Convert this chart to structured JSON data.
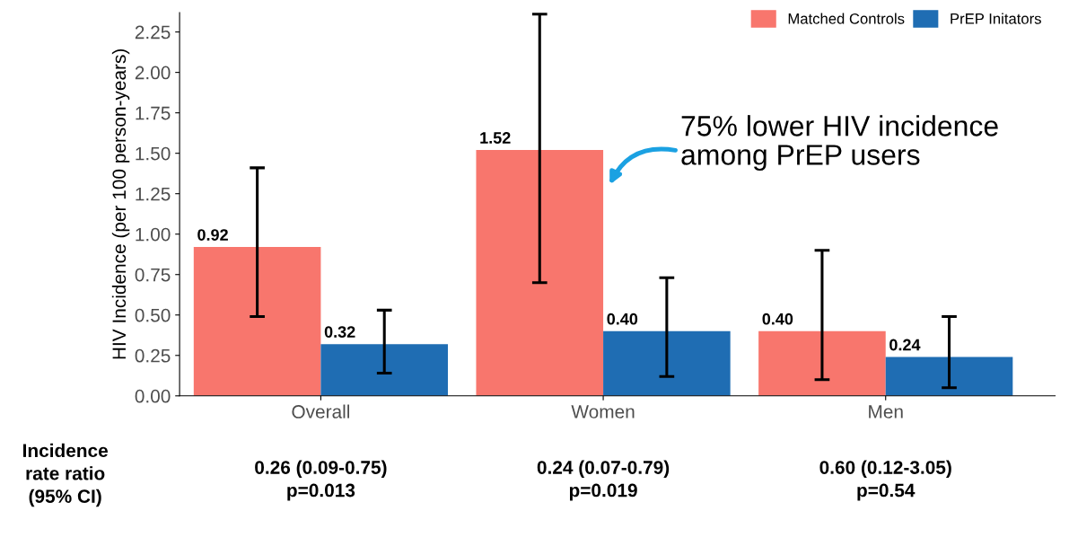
{
  "chart_data": {
    "type": "bar",
    "ylabel": "HIV Incidence (per 100 person-years)",
    "categories": [
      "Overall",
      "Women",
      "Men"
    ],
    "series": [
      {
        "name": "Matched Controls",
        "color": "#f8766d",
        "values": [
          0.92,
          1.52,
          0.4
        ],
        "errors": [
          [
            0.49,
            1.41
          ],
          [
            0.7,
            2.36
          ],
          [
            0.1,
            0.9
          ]
        ],
        "value_labels": [
          "0.92",
          "1.52",
          "0.40"
        ]
      },
      {
        "name": "PrEP Initators",
        "color": "#1f6db3",
        "values": [
          0.32,
          0.4,
          0.24
        ],
        "errors": [
          [
            0.14,
            0.53
          ],
          [
            0.12,
            0.73
          ],
          [
            0.05,
            0.49
          ]
        ],
        "value_labels": [
          "0.32",
          "0.40",
          "0.24"
        ]
      }
    ],
    "ylim": [
      0,
      2.37
    ],
    "yticks": [
      {
        "value": 0,
        "label": "0.00"
      },
      0.25,
      {
        "value": 0.5,
        "label": "0.50"
      },
      0.75,
      {
        "value": 1,
        "label": "1.00"
      },
      1.25,
      {
        "value": 1.5,
        "label": "1.50"
      },
      1.75,
      {
        "value": 2,
        "label": "2.00"
      },
      2.25
    ],
    "legend": "top right",
    "grid": false,
    "annotations": [
      "75% lower HIV incidence\namong PrEP users",
      "Incidence\nrate ratio\n(95% CI)",
      "0.26 (0.09-0.75)\np=0.013",
      "0.24 (0.07-0.79)\np=0.019",
      "0.60 (0.12-3.05)\np=0.54"
    ]
  }
}
